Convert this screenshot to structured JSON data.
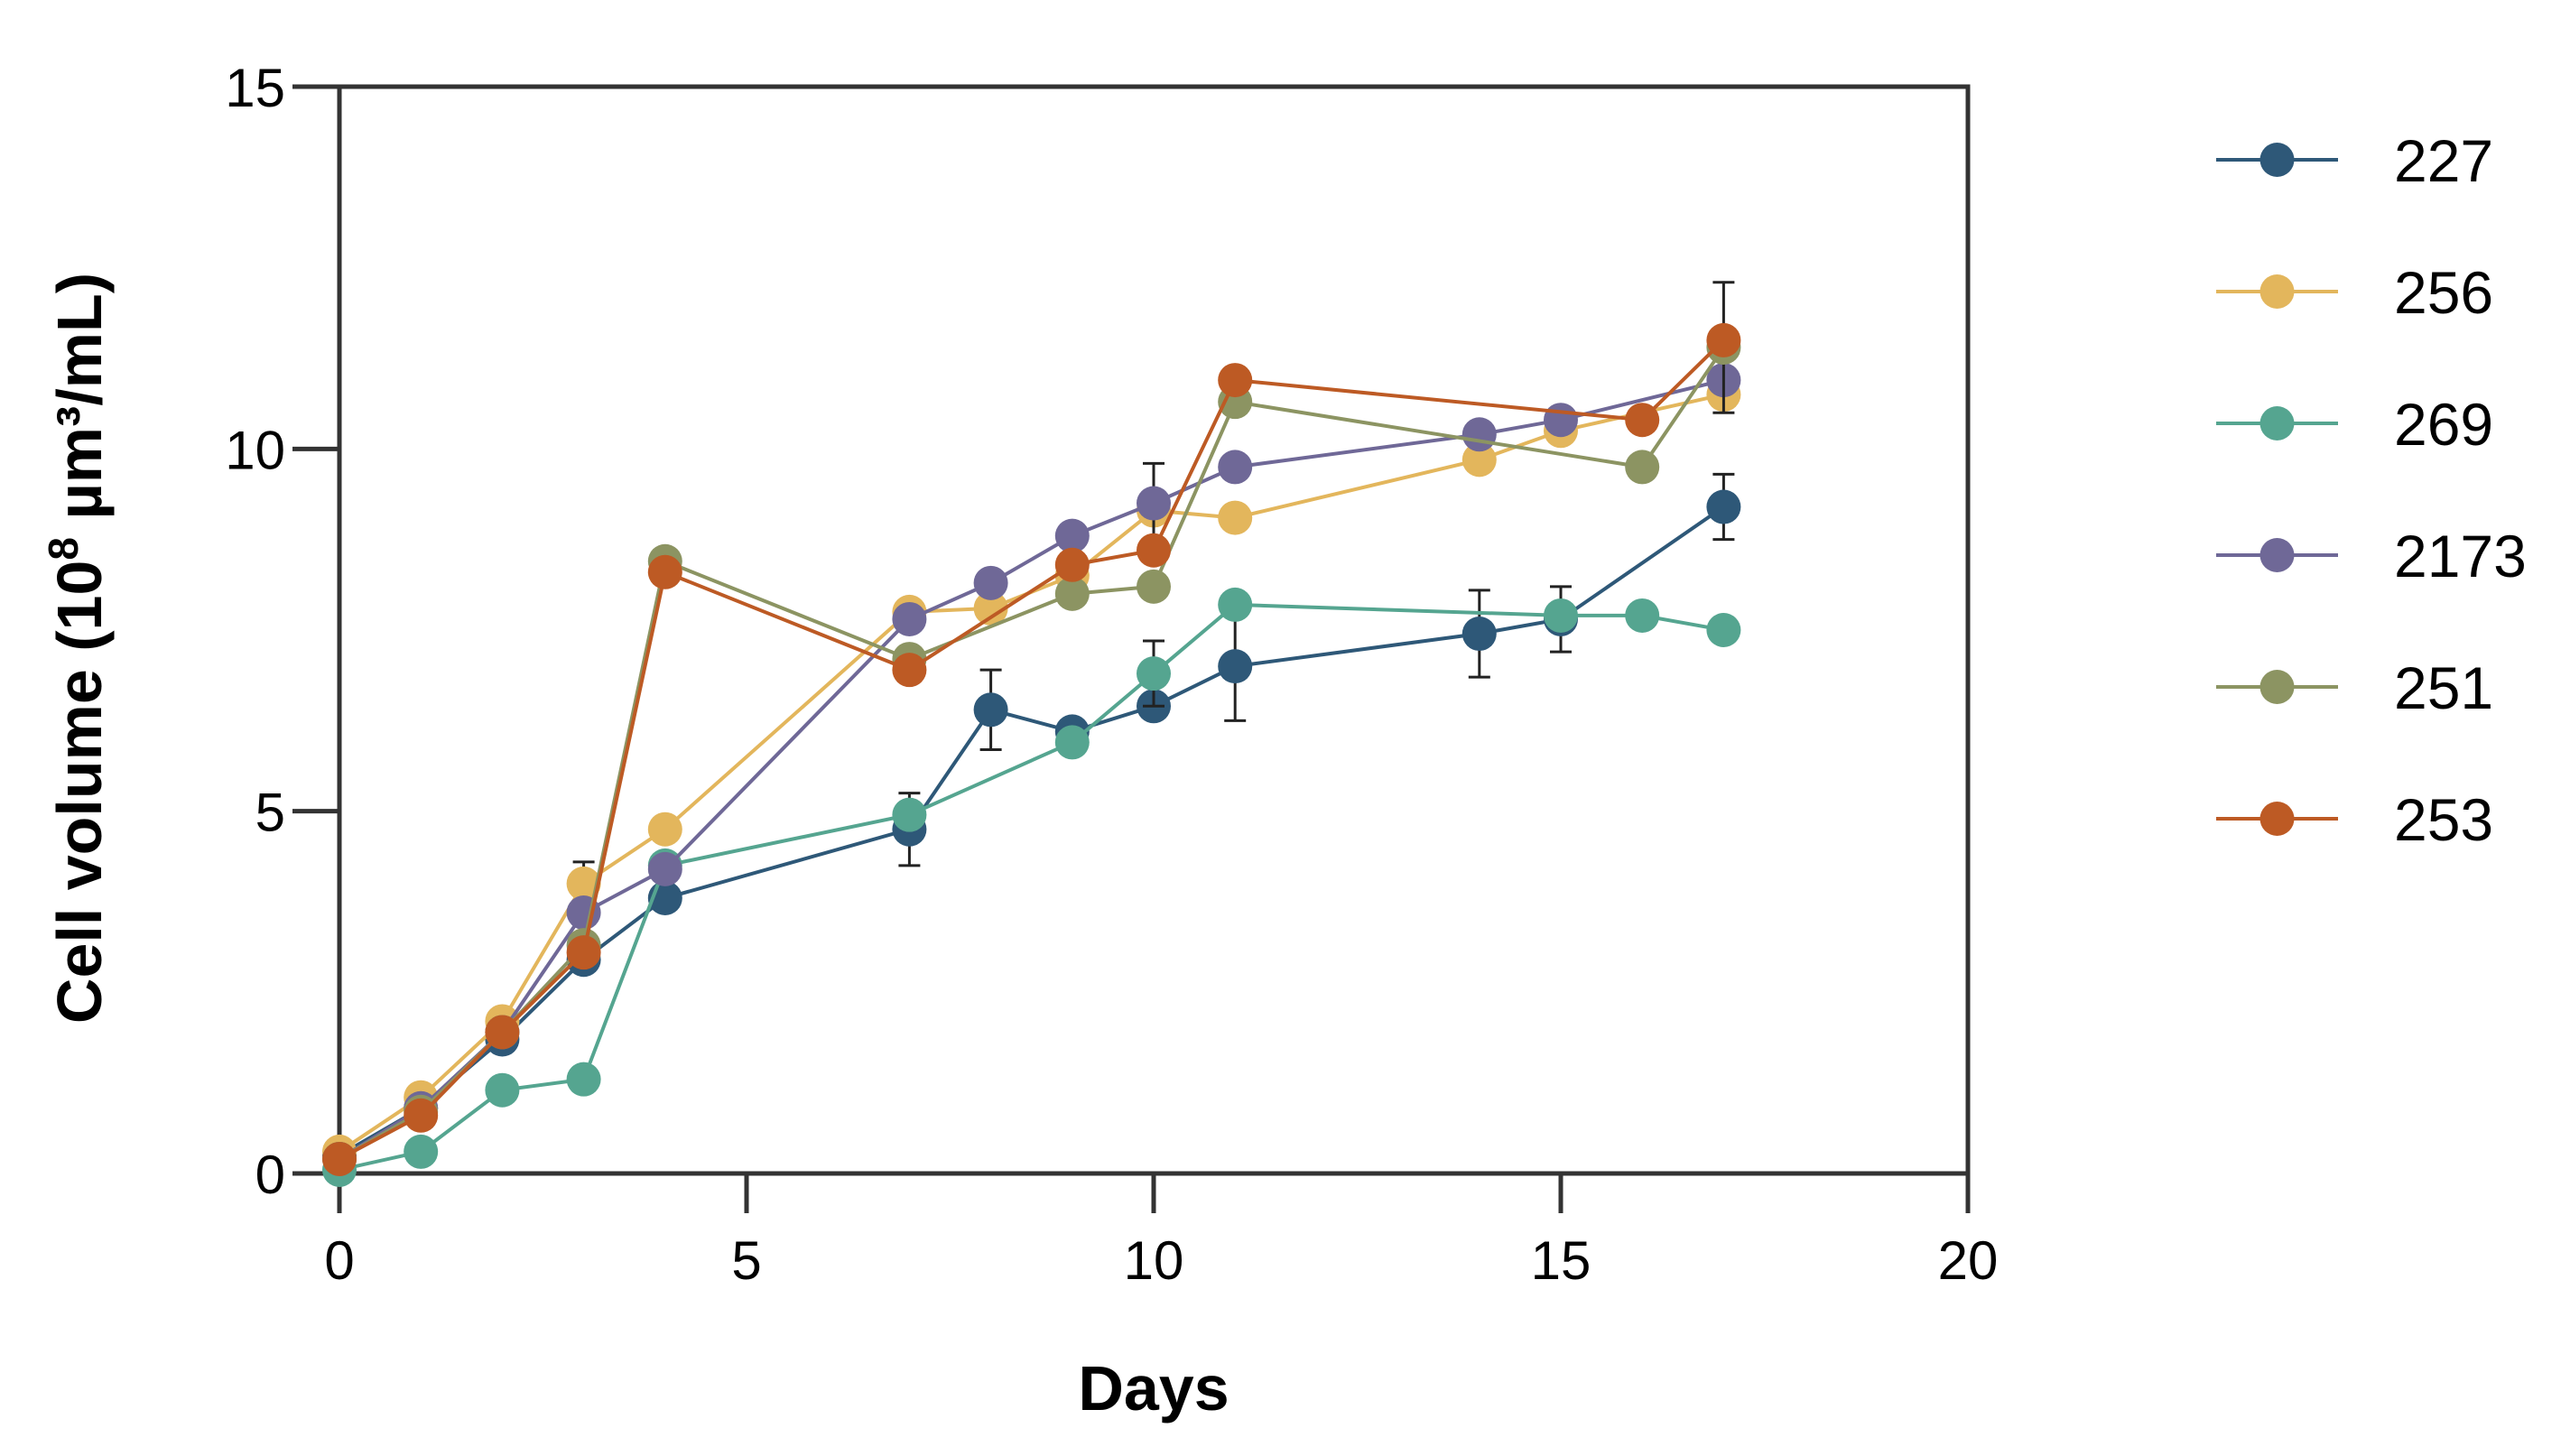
{
  "chart_data": {
    "type": "line",
    "title": "",
    "xlabel": "Days",
    "ylabel": "Cell volume (10",
    "ylabel_sup": "8",
    "ylabel_suffix": " µm³/mL)",
    "xlim": [
      0,
      20
    ],
    "ylim": [
      0,
      15
    ],
    "xticks": [
      0,
      5,
      10,
      15,
      20
    ],
    "yticks": [
      0,
      5,
      10,
      15
    ],
    "xtick_labels": [
      "0",
      "5",
      "10",
      "15",
      "20"
    ],
    "ytick_labels": [
      "0",
      "5",
      "10",
      "15"
    ],
    "grid": false,
    "legend_position": "right",
    "series": [
      {
        "name": "227",
        "color": "#2e5878",
        "x": [
          0,
          1,
          2,
          3,
          4,
          7,
          8,
          9,
          10,
          11,
          14,
          15,
          17
        ],
        "y": [
          0.25,
          0.9,
          1.85,
          2.95,
          3.8,
          4.75,
          6.4,
          6.1,
          6.45,
          7.0,
          7.45,
          7.65,
          9.2
        ],
        "err": [
          0,
          0,
          0,
          0,
          0,
          0.5,
          0.55,
          0,
          0,
          0.75,
          0.6,
          0.45,
          0.45
        ]
      },
      {
        "name": "256",
        "color": "#e3b65c",
        "x": [
          0,
          1,
          2,
          3,
          4,
          7,
          8,
          9,
          10,
          11,
          14,
          15,
          17
        ],
        "y": [
          0.3,
          1.05,
          2.1,
          4.0,
          4.75,
          7.75,
          7.8,
          8.25,
          9.15,
          9.05,
          9.85,
          10.25,
          10.75
        ],
        "err": [
          0,
          0,
          0,
          0.3,
          0,
          0,
          0,
          0,
          0,
          0,
          0,
          0,
          0
        ]
      },
      {
        "name": "269",
        "color": "#55a590",
        "x": [
          0,
          1,
          2,
          3,
          4,
          7,
          9,
          10,
          11,
          15,
          16,
          17
        ],
        "y": [
          0.05,
          0.3,
          1.15,
          1.3,
          4.25,
          4.95,
          5.95,
          6.9,
          7.85,
          7.7,
          7.7,
          7.5
        ],
        "err": [
          0,
          0,
          0,
          0,
          0,
          0,
          0,
          0.45,
          0,
          0,
          0,
          0
        ]
      },
      {
        "name": "2173",
        "color": "#6f6897",
        "x": [
          0,
          1,
          2,
          3,
          4,
          7,
          8,
          9,
          10,
          11,
          14,
          15,
          17
        ],
        "y": [
          0.2,
          0.9,
          1.95,
          3.6,
          4.2,
          7.65,
          8.15,
          8.8,
          9.25,
          9.75,
          10.2,
          10.4,
          10.95
        ],
        "err": [
          0,
          0,
          0,
          0,
          0,
          0,
          0,
          0,
          0.55,
          0,
          0,
          0,
          0
        ]
      },
      {
        "name": "251",
        "color": "#8c9462",
        "x": [
          0,
          1,
          2,
          3,
          4,
          7,
          9,
          10,
          11,
          16,
          17
        ],
        "y": [
          0.2,
          0.85,
          1.95,
          3.15,
          8.45,
          7.1,
          8.0,
          8.1,
          10.65,
          9.75,
          11.4
        ],
        "err": [
          0,
          0,
          0,
          0,
          0,
          0,
          0,
          0,
          0,
          0,
          0.9
        ]
      },
      {
        "name": "253",
        "color": "#bd5a24",
        "x": [
          0,
          1,
          2,
          3,
          4,
          7,
          9,
          10,
          11,
          16,
          17
        ],
        "y": [
          0.2,
          0.8,
          1.95,
          3.05,
          8.3,
          6.95,
          8.4,
          8.6,
          10.95,
          10.4,
          11.5
        ],
        "err": [
          0,
          0,
          0,
          0,
          0,
          0,
          0,
          0,
          0,
          0,
          0
        ]
      }
    ]
  }
}
